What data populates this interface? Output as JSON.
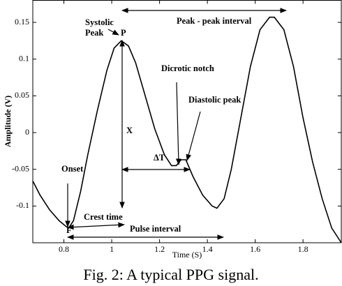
{
  "chart_data": {
    "type": "line",
    "xlabel": "Time (S)",
    "ylabel": "Amplitude (V)",
    "caption": "Fig. 2: A typical PPG signal.",
    "xlim": [
      0.67,
      1.96
    ],
    "ylim": [
      -0.15,
      0.18
    ],
    "xticks": [
      0.8,
      1,
      1.2,
      1.4,
      1.6,
      1.8
    ],
    "yticks": [
      -0.1,
      -0.05,
      0,
      0.05,
      0.1,
      0.15
    ],
    "grid": false,
    "series": [
      {
        "color": "#000000",
        "x": [
          0.67,
          0.7,
          0.74,
          0.78,
          0.81,
          0.82,
          0.84,
          0.87,
          0.9,
          0.94,
          0.98,
          1.01,
          1.04,
          1.07,
          1.1,
          1.14,
          1.18,
          1.22,
          1.25,
          1.27,
          1.29,
          1.31,
          1.34,
          1.38,
          1.42,
          1.44,
          1.47,
          1.5,
          1.54,
          1.58,
          1.62,
          1.66,
          1.68,
          1.72,
          1.76,
          1.8,
          1.84,
          1.88,
          1.92,
          1.96
        ],
        "values": [
          -0.066,
          -0.085,
          -0.105,
          -0.12,
          -0.128,
          -0.13,
          -0.12,
          -0.08,
          -0.03,
          0.03,
          0.085,
          0.115,
          0.125,
          0.118,
          0.095,
          0.05,
          0.005,
          -0.03,
          -0.045,
          -0.045,
          -0.037,
          -0.037,
          -0.06,
          -0.085,
          -0.1,
          -0.103,
          -0.09,
          -0.05,
          0.02,
          0.09,
          0.14,
          0.157,
          0.157,
          0.14,
          0.09,
          0.02,
          -0.04,
          -0.09,
          -0.13,
          -0.15
        ]
      }
    ],
    "annotations": {
      "systolic_1": "Systolic",
      "systolic_2": "Peak",
      "p": "P",
      "x": "X",
      "delta_t": "ΔT",
      "onset": "Onset",
      "f": "F",
      "crest_time": "Crest time",
      "pulse_interval": "Pulse interval",
      "peak_peak": "Peak - peak interval",
      "dicrotic": "Dicrotic notch",
      "diastolic": "Diastolic peak"
    }
  }
}
